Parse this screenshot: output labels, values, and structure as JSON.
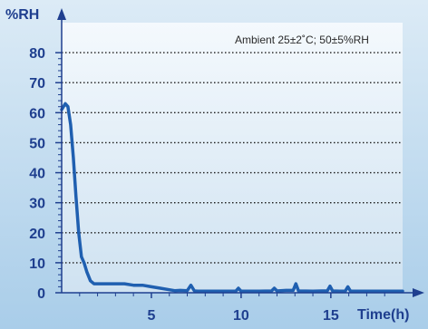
{
  "chart_data": {
    "type": "line",
    "ylabel": "%RH",
    "xlabel": "Time(h)",
    "annotation": "Ambient 25±2˚C; 50±5%RH",
    "xlim": [
      0,
      19
    ],
    "ylim": [
      0,
      90
    ],
    "y_ticks": [
      0,
      10,
      20,
      30,
      40,
      50,
      60,
      70,
      80
    ],
    "y_tick_labels": [
      "0",
      "10",
      "20",
      "30",
      "40",
      "50",
      "60",
      "70",
      "80"
    ],
    "x_ticks": [
      5,
      10,
      15
    ],
    "x_tick_labels": [
      "5",
      "10",
      "15"
    ],
    "grid": "dotted horizontal",
    "series": [
      {
        "color": "#1f5fb0",
        "x": [
          0.0,
          0.2,
          0.35,
          0.5,
          0.65,
          0.8,
          0.95,
          1.1,
          1.25,
          1.4,
          1.6,
          1.8,
          2.0,
          2.3,
          2.6,
          3.0,
          3.5,
          4.0,
          4.5,
          5.0,
          5.5,
          6.0,
          6.3,
          6.6,
          7.0,
          7.2,
          7.4,
          7.6,
          8.0,
          9.0,
          9.7,
          9.85,
          10.0,
          11.0,
          11.7,
          11.85,
          12.0,
          12.5,
          12.9,
          13.05,
          13.2,
          14.0,
          14.5,
          14.8,
          14.95,
          15.1,
          15.5,
          15.8,
          15.95,
          16.1,
          17.0,
          18.0,
          19.0
        ],
        "y": [
          61,
          63,
          62,
          56,
          45,
          32,
          20,
          12,
          10,
          7,
          4,
          3,
          3,
          3,
          3,
          3,
          3,
          2.5,
          2.5,
          2,
          1.5,
          1,
          0.7,
          0.8,
          0.7,
          2.5,
          0.6,
          0.5,
          0.5,
          0.5,
          0.5,
          1.5,
          0.5,
          0.5,
          0.6,
          1.5,
          0.6,
          0.8,
          0.8,
          3.0,
          0.6,
          0.5,
          0.6,
          0.6,
          2.2,
          0.6,
          0.5,
          0.5,
          2.0,
          0.5,
          0.5,
          0.5,
          0.5
        ]
      }
    ]
  }
}
